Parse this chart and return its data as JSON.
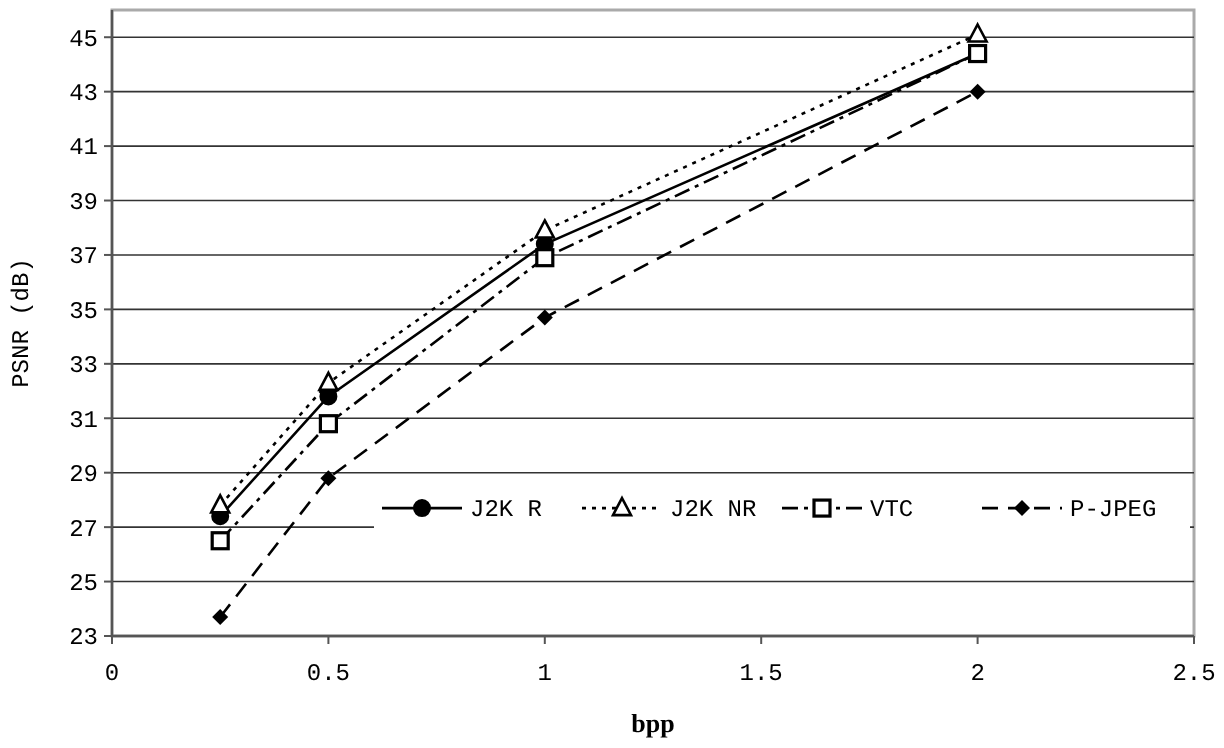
{
  "chart_data": {
    "type": "line",
    "xlabel": "bpp",
    "ylabel": "PSNR (dB)",
    "x": [
      0.25,
      0.5,
      1,
      2
    ],
    "series": [
      {
        "name": "J2K R",
        "color": "#000000",
        "values": [
          27.4,
          31.8,
          37.4,
          44.4
        ],
        "marker": "circle",
        "line_style": "solid"
      },
      {
        "name": "J2K NR",
        "color": "#000000",
        "values": [
          27.8,
          32.3,
          37.9,
          45.1
        ],
        "marker": "triangle",
        "line_style": "dotted"
      },
      {
        "name": "VTC",
        "color": "#000000",
        "values": [
          26.5,
          30.8,
          36.9,
          44.4
        ],
        "marker": "square",
        "line_style": "dashdot"
      },
      {
        "name": "P-JPEG",
        "color": "#000000",
        "values": [
          23.7,
          28.8,
          34.7,
          43.0
        ],
        "marker": "diamond",
        "line_style": "dashed"
      }
    ],
    "xlim": [
      0,
      2.5
    ],
    "xticks": [
      0,
      {
        "value": 0.5,
        "label": "0.5"
      },
      1,
      {
        "value": 1.5,
        "label": "1.5"
      },
      2,
      {
        "value": 2.5,
        "label": "2.5"
      }
    ],
    "ylim": [
      23,
      46
    ],
    "yticks": [
      23,
      25,
      27,
      29,
      31,
      33,
      35,
      37,
      39,
      41,
      43,
      45
    ],
    "grid": "y",
    "legend": "bottom right"
  }
}
